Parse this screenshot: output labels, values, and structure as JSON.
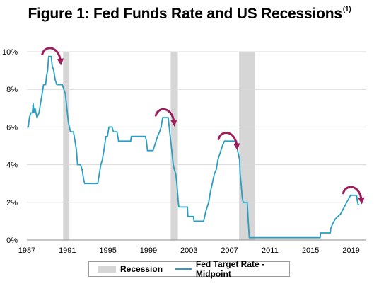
{
  "title": {
    "text": "Figure 1:  Fed Funds Rate and US Recessions",
    "superscript": "(1)"
  },
  "colors": {
    "line": "#2a9fc3",
    "recession": "#d6d6d6",
    "arrow": "#9c1f5d",
    "grid": "#d9d9d9",
    "axis": "#8c8c8c"
  },
  "chart_data": {
    "type": "line",
    "title": "Figure 1:  Fed Funds Rate and US Recessions",
    "xlabel": "",
    "ylabel": "",
    "xlim": [
      1987,
      2020.5
    ],
    "ylim": [
      0,
      10
    ],
    "x_ticks": [
      1987,
      1991,
      1995,
      1999,
      2003,
      2007,
      2011,
      2015,
      2019
    ],
    "x_tick_labels": [
      "1987",
      "1991",
      "1995",
      "1999",
      "2003",
      "2007",
      "2011",
      "2015",
      "2019"
    ],
    "y_ticks": [
      0,
      2,
      4,
      6,
      8,
      10
    ],
    "y_tick_labels": [
      "0%",
      "2%",
      "4%",
      "6%",
      "8%",
      "10%"
    ],
    "grid": "horizontal",
    "legend_position": "bottom",
    "legend": [
      "Recession",
      "Fed Target Rate - Midpoint"
    ],
    "recessions": [
      {
        "start": 1990.58,
        "end": 1991.2
      },
      {
        "start": 2001.2,
        "end": 2001.9
      },
      {
        "start": 2007.95,
        "end": 2009.5
      }
    ],
    "series": [
      {
        "name": "Fed Target Rate - Midpoint",
        "points": [
          [
            1987.0,
            6.0
          ],
          [
            1987.15,
            6.0
          ],
          [
            1987.25,
            6.5
          ],
          [
            1987.4,
            6.75
          ],
          [
            1987.55,
            6.75
          ],
          [
            1987.62,
            7.25
          ],
          [
            1987.7,
            6.75
          ],
          [
            1987.8,
            7.0
          ],
          [
            1987.9,
            6.75
          ],
          [
            1988.0,
            6.5
          ],
          [
            1988.2,
            6.75
          ],
          [
            1988.35,
            7.25
          ],
          [
            1988.5,
            7.75
          ],
          [
            1988.65,
            8.25
          ],
          [
            1988.85,
            8.25
          ],
          [
            1988.95,
            8.75
          ],
          [
            1989.05,
            9.0
          ],
          [
            1989.15,
            9.75
          ],
          [
            1989.4,
            9.75
          ],
          [
            1989.5,
            9.25
          ],
          [
            1989.65,
            9.0
          ],
          [
            1989.8,
            8.5
          ],
          [
            1989.95,
            8.25
          ],
          [
            1990.5,
            8.25
          ],
          [
            1990.65,
            8.0
          ],
          [
            1990.8,
            7.75
          ],
          [
            1990.9,
            7.25
          ],
          [
            1991.0,
            6.75
          ],
          [
            1991.1,
            6.25
          ],
          [
            1991.2,
            6.0
          ],
          [
            1991.3,
            5.75
          ],
          [
            1991.6,
            5.75
          ],
          [
            1991.75,
            5.25
          ],
          [
            1991.9,
            4.75
          ],
          [
            1992.0,
            4.0
          ],
          [
            1992.3,
            4.0
          ],
          [
            1992.45,
            3.75
          ],
          [
            1992.6,
            3.25
          ],
          [
            1992.7,
            3.0
          ],
          [
            1994.0,
            3.0
          ],
          [
            1994.15,
            3.5
          ],
          [
            1994.3,
            4.0
          ],
          [
            1994.45,
            4.25
          ],
          [
            1994.6,
            4.75
          ],
          [
            1994.8,
            5.5
          ],
          [
            1994.95,
            5.5
          ],
          [
            1995.1,
            6.0
          ],
          [
            1995.4,
            6.0
          ],
          [
            1995.55,
            5.75
          ],
          [
            1995.9,
            5.75
          ],
          [
            1996.05,
            5.25
          ],
          [
            1997.25,
            5.25
          ],
          [
            1997.3,
            5.5
          ],
          [
            1998.7,
            5.5
          ],
          [
            1998.8,
            5.25
          ],
          [
            1998.9,
            4.75
          ],
          [
            1999.45,
            4.75
          ],
          [
            1999.6,
            5.0
          ],
          [
            1999.75,
            5.25
          ],
          [
            1999.9,
            5.5
          ],
          [
            2000.1,
            5.75
          ],
          [
            2000.25,
            6.0
          ],
          [
            2000.4,
            6.5
          ],
          [
            2000.95,
            6.5
          ],
          [
            2001.05,
            6.0
          ],
          [
            2001.15,
            5.5
          ],
          [
            2001.25,
            5.0
          ],
          [
            2001.35,
            4.5
          ],
          [
            2001.45,
            4.0
          ],
          [
            2001.55,
            3.75
          ],
          [
            2001.7,
            3.5
          ],
          [
            2001.8,
            3.0
          ],
          [
            2001.88,
            2.5
          ],
          [
            2001.95,
            2.0
          ],
          [
            2002.0,
            1.75
          ],
          [
            2002.85,
            1.75
          ],
          [
            2002.9,
            1.25
          ],
          [
            2003.45,
            1.25
          ],
          [
            2003.5,
            1.0
          ],
          [
            2004.45,
            1.0
          ],
          [
            2004.55,
            1.25
          ],
          [
            2004.65,
            1.5
          ],
          [
            2004.8,
            1.75
          ],
          [
            2004.95,
            2.0
          ],
          [
            2005.1,
            2.5
          ],
          [
            2005.3,
            3.0
          ],
          [
            2005.5,
            3.5
          ],
          [
            2005.7,
            3.75
          ],
          [
            2005.85,
            4.25
          ],
          [
            2006.0,
            4.5
          ],
          [
            2006.15,
            4.75
          ],
          [
            2006.3,
            5.0
          ],
          [
            2006.5,
            5.25
          ],
          [
            2007.7,
            5.25
          ],
          [
            2007.8,
            4.75
          ],
          [
            2007.9,
            4.5
          ],
          [
            2008.0,
            4.25
          ],
          [
            2008.05,
            3.5
          ],
          [
            2008.15,
            3.0
          ],
          [
            2008.25,
            2.25
          ],
          [
            2008.35,
            2.0
          ],
          [
            2008.75,
            2.0
          ],
          [
            2008.8,
            1.5
          ],
          [
            2008.85,
            1.0
          ],
          [
            2008.95,
            0.125
          ],
          [
            2015.95,
            0.125
          ],
          [
            2016.0,
            0.375
          ],
          [
            2016.95,
            0.375
          ],
          [
            2017.0,
            0.625
          ],
          [
            2017.2,
            0.875
          ],
          [
            2017.45,
            1.125
          ],
          [
            2017.95,
            1.375
          ],
          [
            2018.2,
            1.625
          ],
          [
            2018.45,
            1.875
          ],
          [
            2018.7,
            2.125
          ],
          [
            2018.95,
            2.375
          ],
          [
            2019.55,
            2.375
          ],
          [
            2019.6,
            2.125
          ],
          [
            2019.7,
            1.875
          ],
          [
            2019.8,
            1.875
          ]
        ]
      }
    ],
    "annotations": [
      {
        "type": "peak-arrow",
        "x": 1989.5,
        "y": 9.75
      },
      {
        "type": "peak-arrow",
        "x": 2000.7,
        "y": 6.5
      },
      {
        "type": "peak-arrow",
        "x": 2006.9,
        "y": 5.25
      },
      {
        "type": "peak-arrow",
        "x": 2019.2,
        "y": 2.375
      }
    ]
  }
}
